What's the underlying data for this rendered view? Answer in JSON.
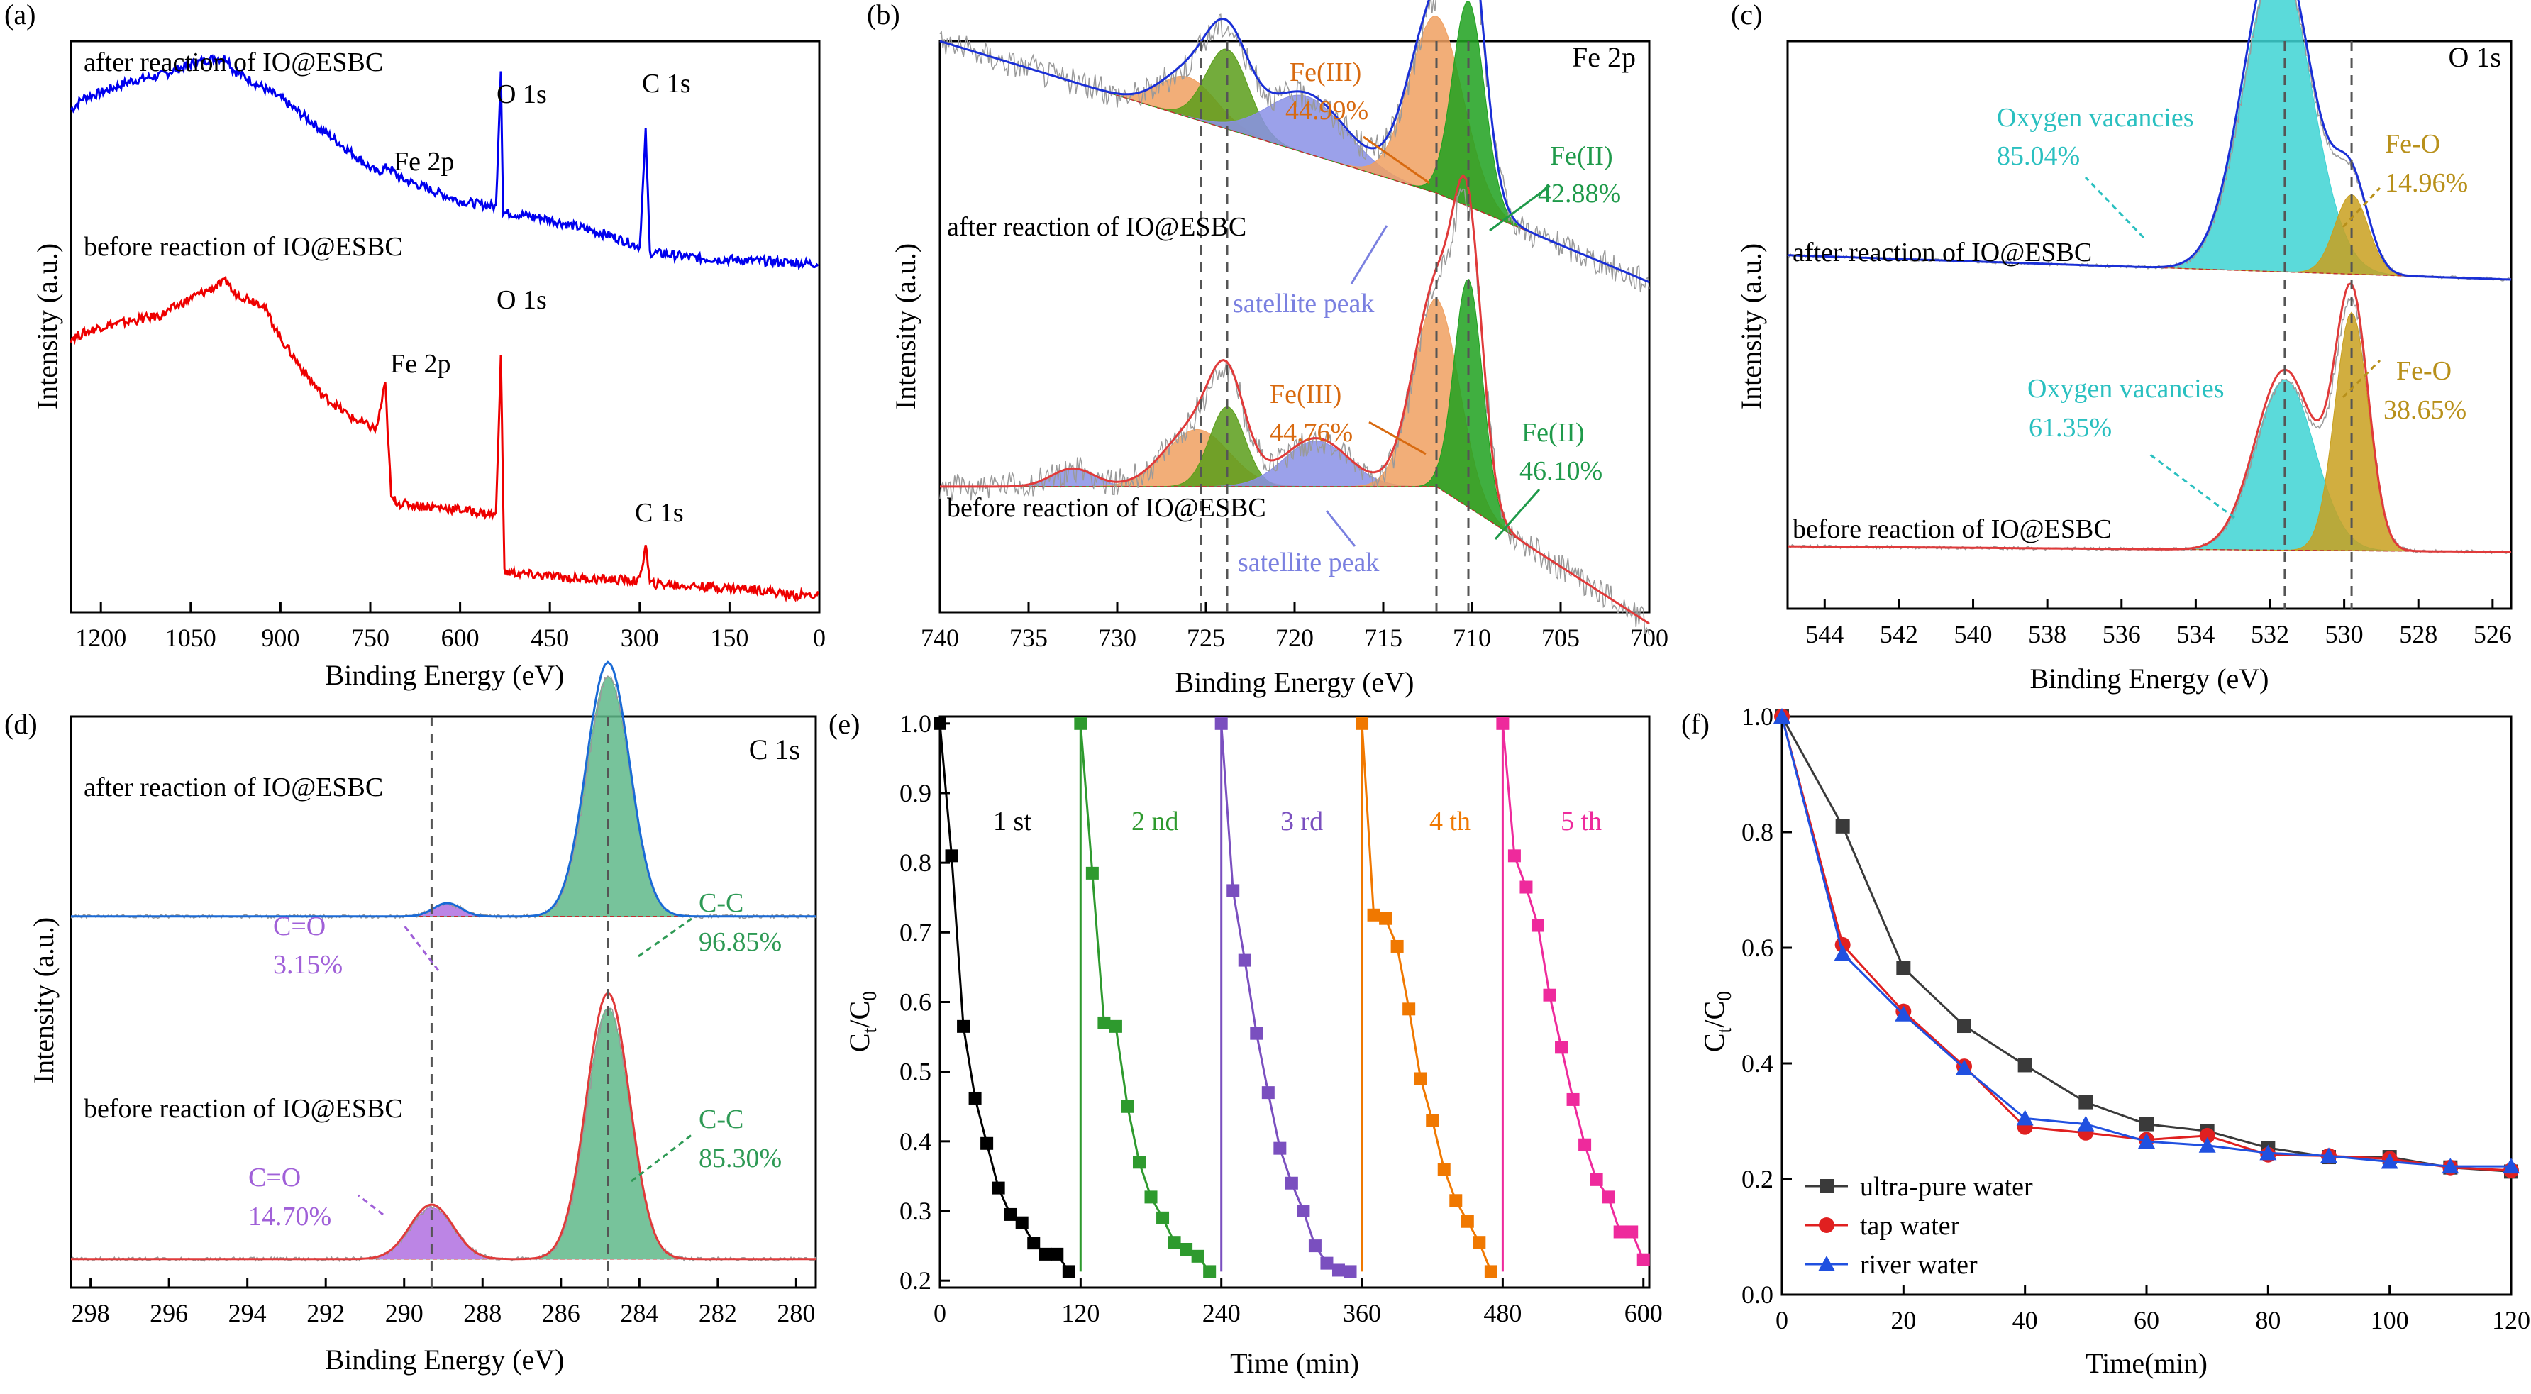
{
  "chart_data": [
    {
      "id": "a",
      "type": "line",
      "panel_label": "(a)",
      "xlabel": "Binding Energy (eV)",
      "ylabel": "Intensity (a.u.)",
      "xlim": [
        1250,
        0
      ],
      "ylim": [
        0,
        100
      ],
      "ticks": [
        1200,
        1050,
        900,
        750,
        600,
        450,
        300,
        150,
        0
      ],
      "series": [
        {
          "name": "after reaction of IO@ESBC",
          "color": "#0000ee",
          "points": [
            [
              1250,
              88
            ],
            [
              1230,
              90
            ],
            [
              1200,
              91
            ],
            [
              1150,
              93
            ],
            [
              1100,
              94
            ],
            [
              1050,
              96
            ],
            [
              1010,
              97
            ],
            [
              988,
              97
            ],
            [
              980,
              95
            ],
            [
              900,
              90
            ],
            [
              800,
              82
            ],
            [
              740,
              77
            ],
            [
              720,
              78
            ],
            [
              700,
              76
            ],
            [
              600,
              72
            ],
            [
              540,
              71
            ],
            [
              532,
              95
            ],
            [
              528,
              70
            ],
            [
              460,
              69
            ],
            [
              350,
              66
            ],
            [
              300,
              64
            ],
            [
              290,
              84
            ],
            [
              283,
              63
            ],
            [
              200,
              62
            ],
            [
              100,
              61.5
            ],
            [
              0,
              61
            ]
          ]
        },
        {
          "name": "before reaction of IO@ESBC",
          "color": "#ee0000",
          "points": [
            [
              1250,
              48
            ],
            [
              1200,
              50
            ],
            [
              1100,
              52
            ],
            [
              1050,
              55
            ],
            [
              988,
              58
            ],
            [
              980,
              56
            ],
            [
              930,
              54
            ],
            [
              900,
              48
            ],
            [
              860,
              42
            ],
            [
              830,
              38
            ],
            [
              780,
              34
            ],
            [
              740,
              32
            ],
            [
              725,
              40
            ],
            [
              715,
              20
            ],
            [
              700,
              19
            ],
            [
              600,
              18
            ],
            [
              540,
              17
            ],
            [
              532,
              45
            ],
            [
              526,
              7
            ],
            [
              420,
              6
            ],
            [
              300,
              5.5
            ],
            [
              290,
              12
            ],
            [
              283,
              5
            ],
            [
              100,
              4
            ],
            [
              50,
              3
            ],
            [
              0,
              3
            ]
          ]
        }
      ],
      "annotations": [
        "after reaction of IO@ESBC",
        "before reaction of IO@ESBC",
        "O 1s",
        "C 1s",
        "Fe 2p",
        "Fe 2p",
        "O 1s",
        "C 1s"
      ]
    },
    {
      "id": "b",
      "type": "area",
      "panel_label": "(b)",
      "corner_label": "Fe 2p",
      "xlabel": "Binding Energy (eV)",
      "ylabel": "Intensity (a.u.)",
      "xlim": [
        740,
        700
      ],
      "ylim": [
        0,
        100
      ],
      "ticks": [
        740,
        735,
        730,
        725,
        720,
        715,
        710,
        705,
        700
      ],
      "dashed_lines": [
        725.3,
        723.8,
        712.0,
        710.2
      ],
      "peaks_after": [
        {
          "center": 726.0,
          "height": 7,
          "width": 1.6,
          "color": "#f0a060"
        },
        {
          "center": 723.8,
          "height": 14,
          "width": 1.2,
          "color": "#5a9e1a"
        },
        {
          "center": 719.3,
          "height": 10,
          "width": 2.2,
          "color": "#8a90e6"
        },
        {
          "center": 712.0,
          "height": 31,
          "width": 1.5,
          "color": "#f0a060"
        },
        {
          "center": 710.2,
          "height": 36,
          "width": 0.9,
          "color": "#1fa11f"
        }
      ],
      "peaks_before": [
        {
          "center": 732.5,
          "height": 3,
          "width": 1.2,
          "color": "#8a90e6"
        },
        {
          "center": 725.5,
          "height": 10,
          "width": 1.8,
          "color": "#f0a060"
        },
        {
          "center": 723.8,
          "height": 14,
          "width": 1.0,
          "color": "#5a9e1a"
        },
        {
          "center": 718.8,
          "height": 8,
          "width": 1.8,
          "color": "#8a90e6"
        },
        {
          "center": 712.0,
          "height": 33,
          "width": 1.3,
          "color": "#f0a060"
        },
        {
          "center": 710.2,
          "height": 40,
          "width": 0.8,
          "color": "#1fa11f"
        }
      ],
      "labels": {
        "after": "after reaction of IO@ESBC",
        "before": "before reaction of IO@ESBC",
        "fe3_after": "Fe(III)",
        "fe3_after_pct": "44.99%",
        "fe2_after": "Fe(II)",
        "fe2_after_pct": "42.88%",
        "fe3_before": "Fe(III)",
        "fe3_before_pct": "44.76%",
        "fe2_before": "Fe(II)",
        "fe2_before_pct": "46.10%",
        "sat_after": "satellite peak",
        "sat_before": "satellite peak"
      }
    },
    {
      "id": "c",
      "type": "area",
      "panel_label": "(c)",
      "corner_label": "O 1s",
      "xlabel": "Binding Energy (eV)",
      "ylabel": "Intensity (a.u.)",
      "xlim": [
        545,
        525.5
      ],
      "ylim": [
        0,
        100
      ],
      "ticks": [
        544,
        542,
        540,
        538,
        536,
        534,
        532,
        530,
        528,
        526
      ],
      "dashed_lines": [
        531.6,
        529.8
      ],
      "peaks_after": [
        {
          "center": 531.8,
          "height": 55,
          "width": 0.9,
          "color": "#3ed3d3"
        },
        {
          "center": 529.8,
          "height": 14,
          "width": 0.45,
          "color": "#c9a01e"
        }
      ],
      "peaks_before": [
        {
          "center": 531.6,
          "height": 30,
          "width": 0.8,
          "color": "#3ed3d3"
        },
        {
          "center": 529.8,
          "height": 42,
          "width": 0.45,
          "color": "#c9a01e"
        }
      ],
      "labels": {
        "after": "after reaction of IO@ESBC",
        "before": "before reaction of IO@ESBC",
        "ov_after": "Oxygen vacancies",
        "ov_after_pct": "85.04%",
        "feo_after": "Fe-O",
        "feo_after_pct": "14.96%",
        "ov_before": "Oxygen vacancies",
        "ov_before_pct": "61.35%",
        "feo_before": "Fe-O",
        "feo_before_pct": "38.65%"
      }
    },
    {
      "id": "d",
      "type": "area",
      "panel_label": "(d)",
      "corner_label": "C 1s",
      "xlabel": "Binding Energy (eV)",
      "ylabel": "Intensity (a.u.)",
      "xlim": [
        298.5,
        279.5
      ],
      "ylim": [
        0,
        100
      ],
      "ticks": [
        298,
        296,
        294,
        292,
        290,
        288,
        286,
        284,
        282,
        280
      ],
      "dashed_lines": [
        289.3,
        284.8
      ],
      "peaks_after": [
        {
          "center": 288.9,
          "height": 2.2,
          "width": 0.35,
          "color": "#b070e0"
        },
        {
          "center": 284.8,
          "height": 42,
          "width": 0.55,
          "color": "#5fb889"
        }
      ],
      "peaks_before": [
        {
          "center": 289.3,
          "height": 9,
          "width": 0.55,
          "color": "#b070e0"
        },
        {
          "center": 284.8,
          "height": 44,
          "width": 0.55,
          "color": "#5fb889"
        }
      ],
      "labels": {
        "after": "after reaction of IO@ESBC",
        "before": "before reaction of IO@ESBC",
        "co_after": "C=O",
        "co_after_pct": "3.15%",
        "cc_after": "C-C",
        "cc_after_pct": "96.85%",
        "co_before": "C=O",
        "co_before_pct": "14.70%",
        "cc_before": "C-C",
        "cc_before_pct": "85.30%"
      }
    },
    {
      "id": "e",
      "type": "line",
      "panel_label": "(e)",
      "xlabel": "Time (min)",
      "ylabel_main": "C",
      "ylabel_sub1": "t",
      "ylabel_mid": "/C",
      "ylabel_sub2": "0",
      "xlim": [
        0,
        605
      ],
      "ylim": [
        0.19,
        1.01
      ],
      "xticks": [
        0,
        120,
        240,
        360,
        480,
        600
      ],
      "yticks": [
        0.2,
        0.3,
        0.4,
        0.5,
        0.6,
        0.7,
        0.8,
        0.9,
        1.0
      ],
      "series": [
        {
          "name": "1 st",
          "color": "#000000",
          "x": [
            0,
            10,
            20,
            30,
            40,
            50,
            60,
            70,
            80,
            90,
            100,
            110
          ],
          "y": [
            1.0,
            0.81,
            0.565,
            0.462,
            0.397,
            0.333,
            0.295,
            0.283,
            0.254,
            0.238,
            0.238,
            0.213
          ]
        },
        {
          "name": "2 nd",
          "color": "#2e9a2e",
          "x": [
            120,
            130,
            140,
            150,
            160,
            170,
            180,
            190,
            200,
            210,
            220,
            230
          ],
          "y": [
            1.0,
            0.785,
            0.57,
            0.565,
            0.45,
            0.37,
            0.32,
            0.29,
            0.255,
            0.245,
            0.235,
            0.213
          ]
        },
        {
          "name": "3 rd",
          "color": "#7a4fbf",
          "x": [
            240,
            250,
            260,
            270,
            280,
            290,
            300,
            310,
            320,
            330,
            340,
            350
          ],
          "y": [
            1.0,
            0.76,
            0.66,
            0.555,
            0.47,
            0.39,
            0.34,
            0.3,
            0.25,
            0.225,
            0.215,
            0.213
          ]
        },
        {
          "name": "4 th",
          "color": "#f07800",
          "x": [
            360,
            370,
            380,
            390,
            400,
            410,
            420,
            430,
            440,
            450,
            460,
            470
          ],
          "y": [
            1.0,
            0.725,
            0.72,
            0.68,
            0.59,
            0.49,
            0.43,
            0.36,
            0.315,
            0.285,
            0.255,
            0.213
          ]
        },
        {
          "name": "5 th",
          "color": "#ee2a9c",
          "x": [
            480,
            490,
            500,
            510,
            520,
            530,
            540,
            550,
            560,
            570,
            580,
            590,
            600
          ],
          "y": [
            1.0,
            0.81,
            0.765,
            0.71,
            0.61,
            0.535,
            0.46,
            0.395,
            0.345,
            0.32,
            0.27,
            0.27,
            0.23
          ]
        }
      ]
    },
    {
      "id": "f",
      "type": "line",
      "panel_label": "(f)",
      "xlabel": "Time(min)",
      "ylabel_main": "C",
      "ylabel_sub1": "t",
      "ylabel_mid": "/C",
      "ylabel_sub2": "0",
      "xlim": [
        0,
        120
      ],
      "ylim": [
        0,
        1.0
      ],
      "xticks": [
        0,
        20,
        40,
        60,
        80,
        100,
        120
      ],
      "yticks": [
        0.0,
        0.2,
        0.4,
        0.6,
        0.8,
        1.0
      ],
      "legend_position": "bottom-left",
      "series": [
        {
          "name": "ultra-pure water",
          "color": "#3a3a3a",
          "marker": "square",
          "x": [
            0,
            10,
            20,
            30,
            40,
            50,
            60,
            70,
            80,
            90,
            100,
            110,
            120
          ],
          "y": [
            1.0,
            0.81,
            0.565,
            0.465,
            0.397,
            0.333,
            0.295,
            0.283,
            0.254,
            0.238,
            0.238,
            0.22,
            0.213
          ]
        },
        {
          "name": "tap water",
          "color": "#e02020",
          "marker": "circle",
          "x": [
            0,
            10,
            20,
            30,
            40,
            50,
            60,
            70,
            80,
            90,
            100,
            110,
            120
          ],
          "y": [
            1.0,
            0.605,
            0.49,
            0.395,
            0.29,
            0.28,
            0.268,
            0.275,
            0.242,
            0.24,
            0.235,
            0.22,
            0.215
          ]
        },
        {
          "name": "river water",
          "color": "#2050e0",
          "marker": "triangle",
          "x": [
            0,
            10,
            20,
            30,
            40,
            50,
            60,
            70,
            80,
            90,
            100,
            110,
            120
          ],
          "y": [
            1.0,
            0.59,
            0.485,
            0.392,
            0.305,
            0.295,
            0.265,
            0.258,
            0.245,
            0.24,
            0.23,
            0.222,
            0.222
          ]
        }
      ]
    }
  ]
}
